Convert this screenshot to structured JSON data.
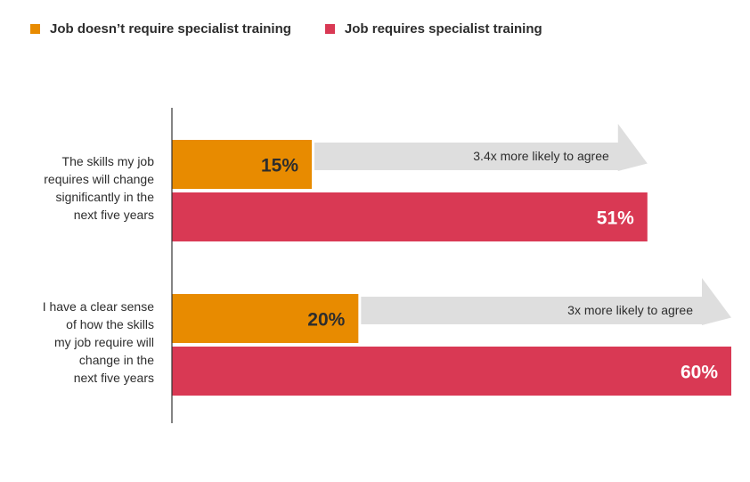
{
  "chart_data": {
    "type": "bar",
    "orientation": "horizontal",
    "categories": [
      "The skills my job requires will change significantly in the next five years",
      "I have a clear sense of how the skills my job require will change in the next five years"
    ],
    "category_lines": [
      [
        "The skills my job",
        "requires will change",
        "significantly in the",
        "next five years"
      ],
      [
        "I have a clear sense",
        "of how the skills",
        "my job require will",
        "change in the",
        "next five years"
      ]
    ],
    "series": [
      {
        "name": "Job doesn’t require specialist training",
        "values": [
          15,
          20
        ],
        "labels": [
          "15%",
          "20%"
        ],
        "color": "#E88B00"
      },
      {
        "name": "Job requires specialist training",
        "values": [
          51,
          60
        ],
        "labels": [
          "51%",
          "60%"
        ],
        "color": "#D93954"
      }
    ],
    "annotations": [
      "3.4x more likely to agree",
      "3x more likely to agree"
    ],
    "arrow_color": "#DEDEDE",
    "xlim": [
      0,
      60
    ],
    "legend_position": "top-left",
    "grid": false
  }
}
